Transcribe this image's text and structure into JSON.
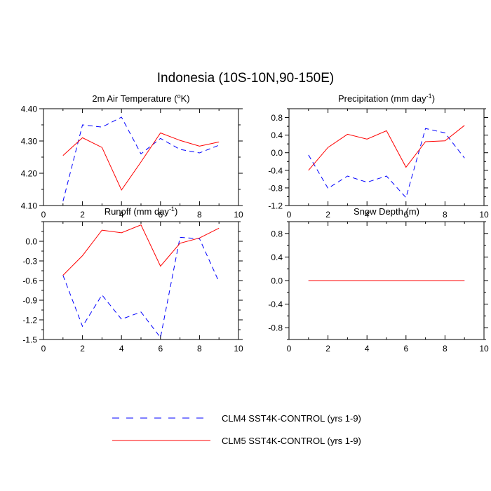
{
  "figure": {
    "title": "Indonesia (10S-10N,90-150E)"
  },
  "legend": {
    "items": [
      {
        "label": "CLM4 SST4K-CONTROL (yrs 1-9)",
        "color": "#0000ff",
        "style": "dashed"
      },
      {
        "label": "CLM5 SST4K-CONTROL (yrs 1-9)",
        "color": "#ff0000",
        "style": "solid"
      }
    ]
  },
  "chart_data": [
    {
      "type": "line",
      "title": "2m Air Temperature (",
      "title_sup": "o",
      "title_suffix": "K)",
      "xlim": [
        0,
        10
      ],
      "ylim": [
        4.1,
        4.4
      ],
      "xticks": [
        0,
        2,
        4,
        6,
        8,
        10
      ],
      "yticks": [
        4.1,
        4.2,
        4.3,
        4.4
      ],
      "ytick_labels": [
        "4.10",
        "4.20",
        "4.30",
        "4.40"
      ],
      "x": [
        1,
        2,
        3,
        4,
        5,
        6,
        7,
        8,
        9
      ],
      "series": [
        {
          "name": "CLM4 SST4K-CONTROL (yrs 1-9)",
          "color": "#0000ff",
          "dash": true,
          "values": [
            4.113,
            4.35,
            4.343,
            4.374,
            4.26,
            4.308,
            4.274,
            4.263,
            4.287
          ]
        },
        {
          "name": "CLM5 SST4K-CONTROL (yrs 1-9)",
          "color": "#ff0000",
          "dash": false,
          "values": [
            4.255,
            4.31,
            4.28,
            4.148,
            4.235,
            4.325,
            4.302,
            4.284,
            4.297
          ]
        }
      ]
    },
    {
      "type": "line",
      "title": "Precipitation (mm day",
      "title_sup": "-1",
      "title_suffix": ")",
      "xlim": [
        0,
        10
      ],
      "ylim": [
        -1.2,
        1.0
      ],
      "xticks": [
        0,
        2,
        4,
        6,
        8,
        10
      ],
      "yticks": [
        -1.2,
        -0.8,
        -0.4,
        0.0,
        0.4,
        0.8
      ],
      "ytick_labels": [
        "-1.2",
        "-0.8",
        "-0.4",
        "0.0",
        "0.4",
        "0.8"
      ],
      "x": [
        1,
        2,
        3,
        4,
        5,
        6,
        7,
        8,
        9
      ],
      "series": [
        {
          "name": "CLM4 SST4K-CONTROL (yrs 1-9)",
          "color": "#0000ff",
          "dash": true,
          "values": [
            -0.05,
            -0.81,
            -0.53,
            -0.67,
            -0.53,
            -1.02,
            0.55,
            0.45,
            -0.12
          ]
        },
        {
          "name": "CLM5 SST4K-CONTROL (yrs 1-9)",
          "color": "#ff0000",
          "dash": false,
          "values": [
            -0.4,
            0.12,
            0.42,
            0.31,
            0.5,
            -0.33,
            0.25,
            0.27,
            0.62
          ]
        }
      ]
    },
    {
      "type": "line",
      "title": "Runoff (mm day",
      "title_sup": "-1",
      "title_suffix": ")",
      "xlim": [
        0,
        10
      ],
      "ylim": [
        -1.5,
        0.3
      ],
      "xticks": [
        0,
        2,
        4,
        6,
        8,
        10
      ],
      "yticks": [
        -1.5,
        -1.2,
        -0.9,
        -0.6,
        -0.3,
        0.0
      ],
      "ytick_labels": [
        "-1.5",
        "-1.2",
        "-0.9",
        "-0.6",
        "-0.3",
        "0.0"
      ],
      "x": [
        1,
        2,
        3,
        4,
        5,
        6,
        7,
        8,
        9
      ],
      "series": [
        {
          "name": "CLM4 SST4K-CONTROL (yrs 1-9)",
          "color": "#0000ff",
          "dash": true,
          "values": [
            -0.52,
            -1.3,
            -0.82,
            -1.19,
            -1.08,
            -1.47,
            0.06,
            0.04,
            -0.62
          ]
        },
        {
          "name": "CLM5 SST4K-CONTROL (yrs 1-9)",
          "color": "#ff0000",
          "dash": false,
          "values": [
            -0.52,
            -0.22,
            0.17,
            0.13,
            0.25,
            -0.38,
            -0.03,
            0.05,
            0.2
          ]
        }
      ]
    },
    {
      "type": "line",
      "title": "Snow Depth (m)",
      "title_sup": "",
      "title_suffix": "",
      "xlim": [
        0,
        10
      ],
      "ylim": [
        -1.0,
        1.0
      ],
      "xticks": [
        0,
        2,
        4,
        6,
        8,
        10
      ],
      "yticks": [
        -0.8,
        -0.4,
        0.0,
        0.4,
        0.8
      ],
      "ytick_labels": [
        "-0.8",
        "-0.4",
        "0.0",
        "0.4",
        "0.8"
      ],
      "x": [
        1,
        2,
        3,
        4,
        5,
        6,
        7,
        8,
        9
      ],
      "series": [
        {
          "name": "CLM4 SST4K-CONTROL (yrs 1-9)",
          "color": "#0000ff",
          "dash": true,
          "values": [
            0,
            0,
            0,
            0,
            0,
            0,
            0,
            0,
            0
          ]
        },
        {
          "name": "CLM5 SST4K-CONTROL (yrs 1-9)",
          "color": "#ff0000",
          "dash": false,
          "values": [
            0,
            0,
            0,
            0,
            0,
            0,
            0,
            0,
            0
          ]
        }
      ]
    }
  ]
}
